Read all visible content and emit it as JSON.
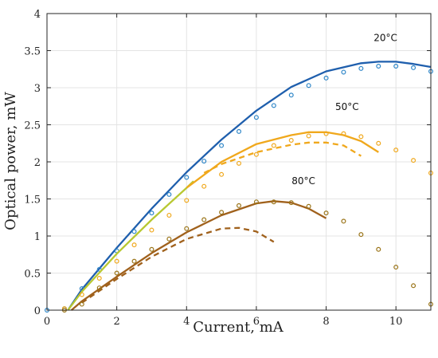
{
  "chart_data": {
    "type": "line",
    "xlabel": "Current, mA",
    "ylabel": "Optical power, mW",
    "xlim": [
      0,
      11
    ],
    "ylim": [
      0,
      4
    ],
    "xticks": [
      0,
      2,
      4,
      6,
      8,
      10
    ],
    "yticks": [
      0,
      0.5,
      1,
      1.5,
      2,
      2.5,
      3,
      3.5,
      4
    ],
    "grid": true,
    "series_labels": [
      "20°C",
      "50°C",
      "80°C"
    ],
    "series": [
      {
        "label_index": 0,
        "style": "solid",
        "color": "#1f5fad",
        "x": [
          0.6,
          1.0,
          2.0,
          3.0,
          4.0,
          5.0,
          6.0,
          7.0,
          8.0,
          9.0,
          9.5,
          10.0,
          10.5,
          11.0
        ],
        "y": [
          0.0,
          0.28,
          0.84,
          1.37,
          1.86,
          2.3,
          2.69,
          3.01,
          3.22,
          3.33,
          3.35,
          3.35,
          3.32,
          3.28
        ]
      },
      {
        "label_index": 0,
        "style": "markers",
        "color": "#2e86c8",
        "x": [
          0.0,
          0.5,
          1.0,
          1.5,
          2.0,
          2.5,
          3.0,
          3.5,
          4.0,
          4.5,
          5.0,
          5.5,
          6.0,
          6.5,
          7.0,
          7.5,
          8.0,
          8.5,
          9.0,
          9.5,
          10.0,
          10.5,
          11.0
        ],
        "y": [
          0.0,
          0.02,
          0.29,
          0.55,
          0.8,
          1.06,
          1.31,
          1.56,
          1.79,
          2.01,
          2.22,
          2.41,
          2.6,
          2.76,
          2.9,
          3.03,
          3.13,
          3.21,
          3.26,
          3.29,
          3.29,
          3.27,
          3.22
        ]
      },
      {
        "label_index": 1,
        "style": "solid",
        "color": "#b8c832",
        "x": [
          0.6,
          1.0,
          2.0,
          3.0,
          4.0,
          4.2
        ],
        "y": [
          0.0,
          0.25,
          0.76,
          1.22,
          1.65,
          1.74
        ]
      },
      {
        "label_index": 1,
        "style": "solid",
        "color": "#f0a81c",
        "x": [
          4.0,
          5.0,
          6.0,
          7.0,
          7.5,
          8.0,
          8.5,
          9.0,
          9.5
        ],
        "y": [
          1.65,
          2.0,
          2.24,
          2.36,
          2.4,
          2.4,
          2.36,
          2.28,
          2.13
        ]
      },
      {
        "label_index": 1,
        "style": "dashed",
        "color": "#f0a81c",
        "x": [
          4.5,
          5.0,
          6.0,
          7.0,
          7.5,
          8.0,
          8.5,
          9.0
        ],
        "y": [
          1.85,
          1.97,
          2.13,
          2.23,
          2.26,
          2.26,
          2.22,
          2.08
        ]
      },
      {
        "label_index": 1,
        "style": "markers",
        "color": "#f0a81c",
        "x": [
          0.5,
          1.0,
          1.5,
          2.0,
          2.5,
          3.0,
          3.5,
          4.0,
          4.5,
          5.0,
          5.5,
          6.0,
          6.5,
          7.0,
          7.5,
          8.0,
          8.5,
          9.0,
          9.5,
          10.0,
          10.5,
          11.0
        ],
        "y": [
          0.02,
          0.21,
          0.43,
          0.66,
          0.88,
          1.08,
          1.28,
          1.48,
          1.67,
          1.83,
          1.98,
          2.1,
          2.22,
          2.29,
          2.35,
          2.38,
          2.38,
          2.34,
          2.25,
          2.16,
          2.02,
          1.85
        ]
      },
      {
        "label_index": 2,
        "style": "solid",
        "color": "#a0611c",
        "x": [
          0.7,
          1.0,
          2.0,
          3.0,
          4.0,
          5.0,
          6.0,
          6.5,
          7.0,
          7.5,
          8.0
        ],
        "y": [
          0.0,
          0.12,
          0.45,
          0.77,
          1.05,
          1.28,
          1.44,
          1.47,
          1.45,
          1.37,
          1.24
        ]
      },
      {
        "label_index": 2,
        "style": "dashed",
        "color": "#a0611c",
        "x": [
          1.0,
          2.0,
          3.0,
          4.0,
          5.0,
          5.5,
          6.0,
          6.5
        ],
        "y": [
          0.1,
          0.42,
          0.72,
          0.96,
          1.1,
          1.11,
          1.06,
          0.92
        ]
      },
      {
        "label_index": 2,
        "style": "markers",
        "color": "#9a7418",
        "x": [
          0.5,
          1.0,
          1.5,
          2.0,
          2.5,
          3.0,
          3.5,
          4.0,
          4.5,
          5.0,
          5.5,
          6.0,
          6.5,
          7.0,
          7.5,
          8.0,
          8.5,
          9.0,
          9.5,
          10.0,
          10.5,
          11.0
        ],
        "y": [
          0.0,
          0.08,
          0.3,
          0.5,
          0.66,
          0.82,
          0.96,
          1.1,
          1.22,
          1.32,
          1.41,
          1.46,
          1.46,
          1.45,
          1.4,
          1.31,
          1.2,
          1.02,
          0.82,
          0.58,
          0.33,
          0.08
        ]
      }
    ],
    "annotations": [
      {
        "text_index": 0,
        "x": 9.7,
        "y": 3.63
      },
      {
        "text_index": 1,
        "x": 8.6,
        "y": 2.7
      },
      {
        "text_index": 2,
        "x": 7.35,
        "y": 1.7
      }
    ],
    "label_color": "#111111"
  }
}
